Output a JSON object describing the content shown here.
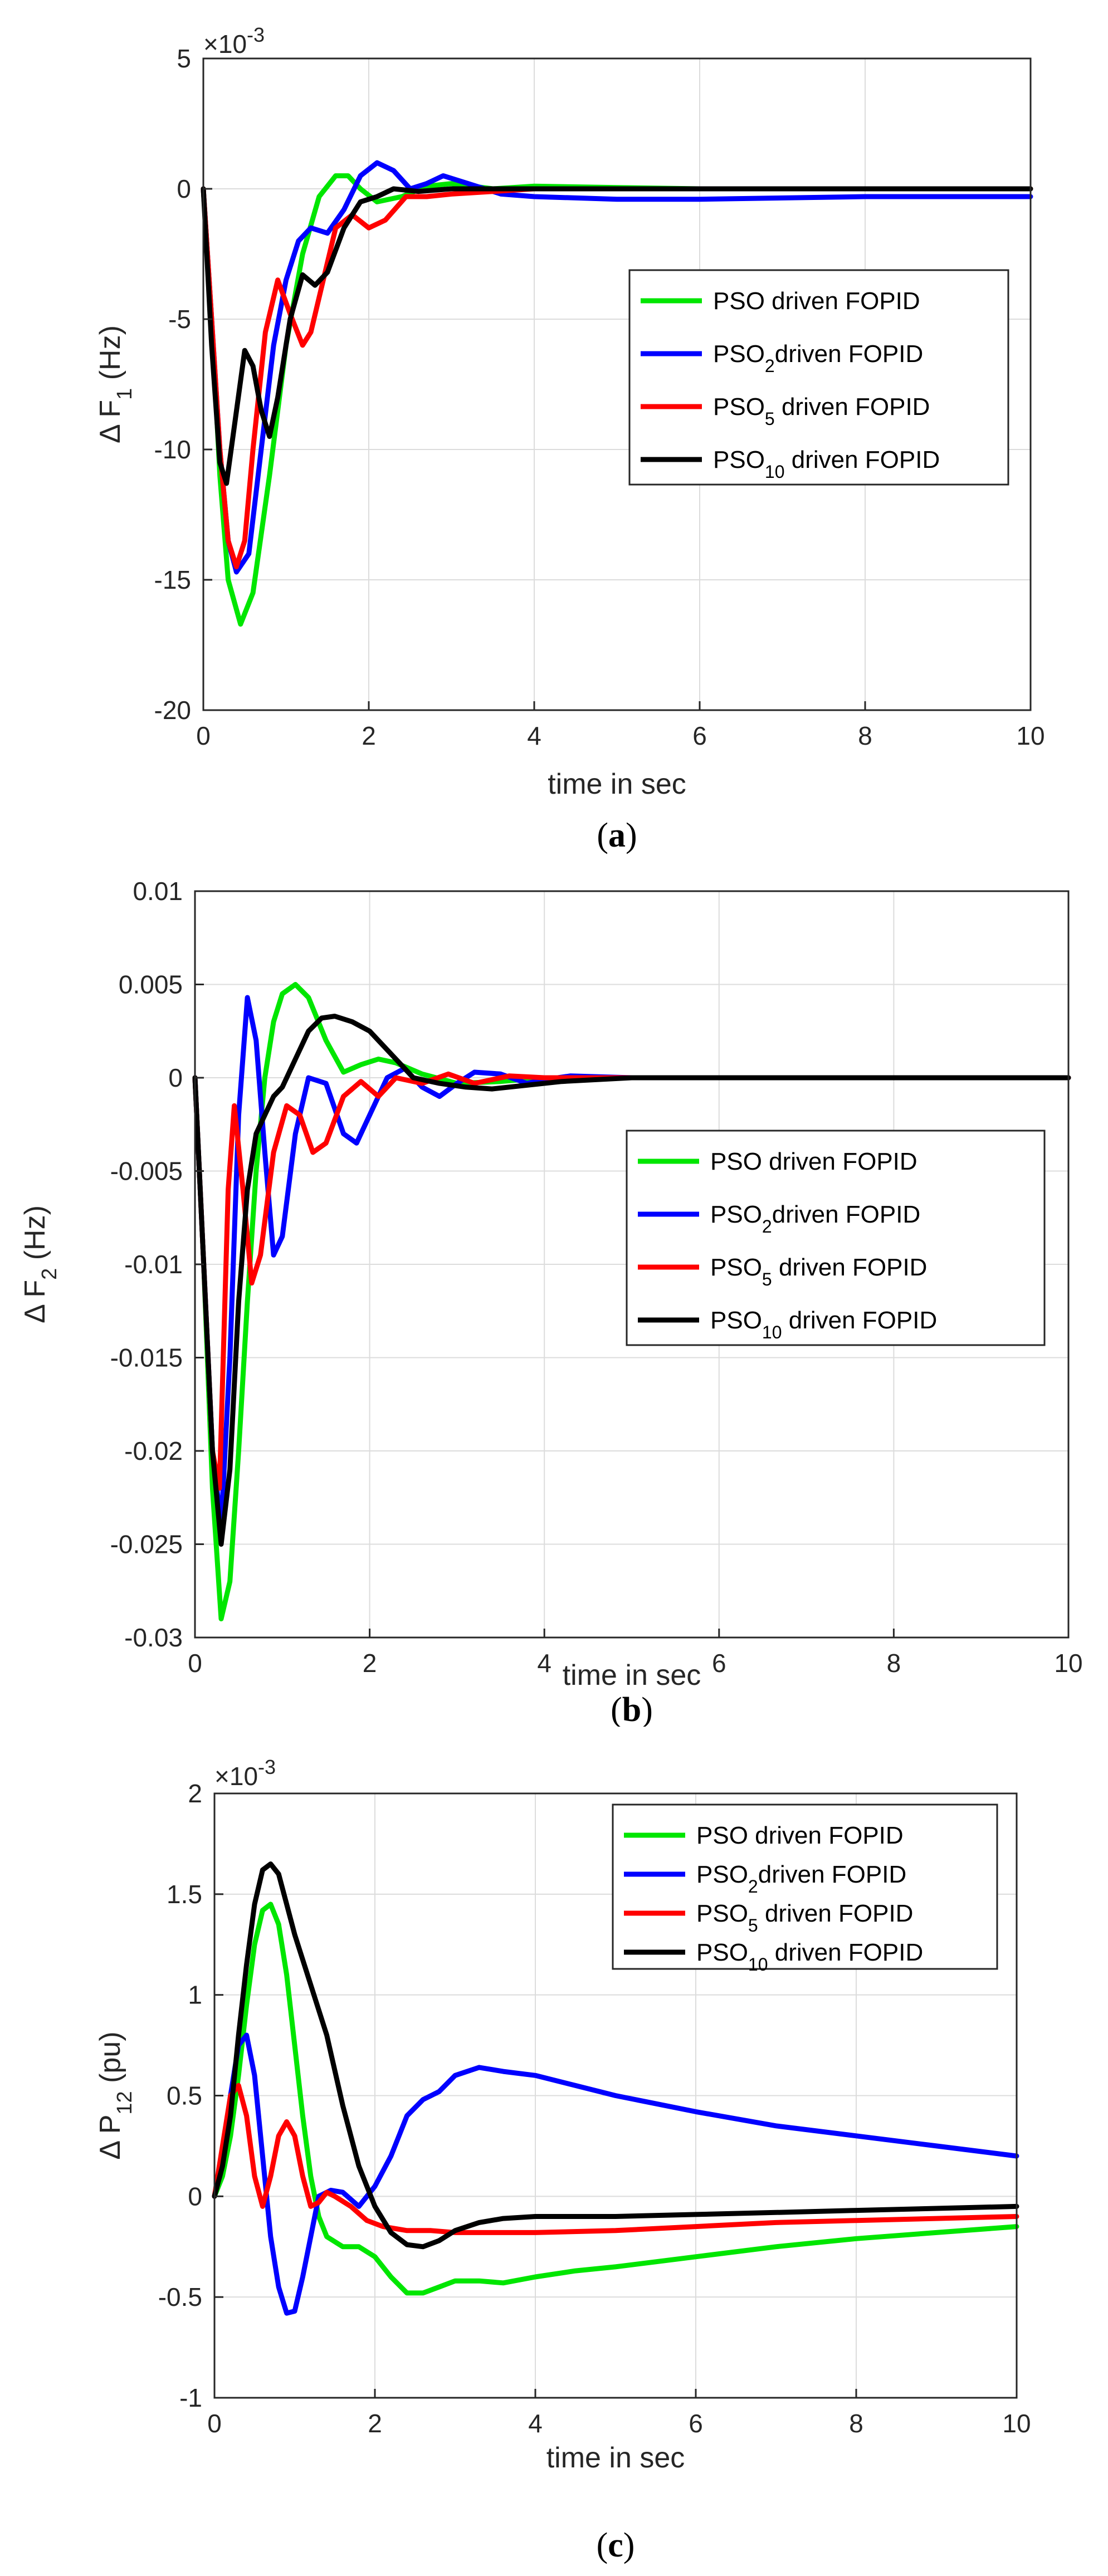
{
  "figure_panels": [
    {
      "caption_letter": "a"
    },
    {
      "caption_letter": "b"
    },
    {
      "caption_letter": "c"
    }
  ],
  "chart_data": [
    {
      "type": "line",
      "panel": "a",
      "xlabel": "time in sec",
      "ylabel": "Δ F",
      "ylabel_sub": "1",
      "ylabel_unit": " (Hz)",
      "exponent": "×10",
      "exponent_power": "-3",
      "xlim": [
        0,
        10
      ],
      "ylim": [
        -20,
        5
      ],
      "xticks": [
        0,
        2,
        4,
        6,
        8,
        10
      ],
      "yticks": [
        -20,
        -15,
        -10,
        -5,
        0,
        5
      ],
      "grid": true,
      "legend_position": "center-right",
      "series": [
        {
          "name": "PSO driven FOPID",
          "name_main": "PSO",
          "name_sub": "",
          "name_rest": " driven FOPID",
          "color": "#00e600",
          "x": [
            0,
            0.1,
            0.2,
            0.3,
            0.45,
            0.6,
            0.8,
            1.0,
            1.2,
            1.4,
            1.6,
            1.75,
            1.9,
            2.1,
            2.4,
            2.7,
            3.0,
            3.5,
            4.0,
            5.0,
            6.0,
            8.0,
            10.0
          ],
          "y": [
            0,
            -5,
            -11,
            -15,
            -16.7,
            -15.5,
            -11,
            -6,
            -2.5,
            -0.3,
            0.5,
            0.5,
            0,
            -0.5,
            -0.3,
            0.1,
            0.2,
            0,
            0.1,
            0.05,
            0,
            0,
            0
          ]
        },
        {
          "name": "PSO2driven FOPID",
          "name_main": "PSO",
          "name_sub": "2",
          "name_rest": "driven FOPID",
          "color": "#0000ff",
          "x": [
            0,
            0.1,
            0.2,
            0.3,
            0.4,
            0.55,
            0.7,
            0.85,
            1.0,
            1.15,
            1.3,
            1.5,
            1.7,
            1.9,
            2.1,
            2.3,
            2.5,
            2.7,
            2.9,
            3.2,
            3.6,
            4.0,
            5.0,
            6.0,
            8.0,
            10.0
          ],
          "y": [
            0,
            -5,
            -10,
            -13.5,
            -14.7,
            -14,
            -10,
            -6,
            -3.5,
            -2,
            -1.5,
            -1.7,
            -0.8,
            0.5,
            1.0,
            0.7,
            0,
            0.2,
            0.5,
            0.2,
            -0.2,
            -0.3,
            -0.4,
            -0.4,
            -0.3,
            -0.3
          ]
        },
        {
          "name": "PSO5 driven FOPID",
          "name_main": "PSO",
          "name_sub": "5",
          "name_rest": " driven FOPID",
          "color": "#ff0000",
          "x": [
            0,
            0.1,
            0.2,
            0.3,
            0.4,
            0.5,
            0.6,
            0.75,
            0.9,
            1.05,
            1.2,
            1.3,
            1.45,
            1.6,
            1.8,
            2.0,
            2.2,
            2.45,
            2.7,
            3.0,
            3.5,
            4.0,
            5.0,
            6.0,
            8.0,
            10.0
          ],
          "y": [
            0,
            -5,
            -10,
            -13.5,
            -14.5,
            -13.5,
            -10,
            -5.5,
            -3.5,
            -4.8,
            -6,
            -5.5,
            -3.5,
            -1.5,
            -1.0,
            -1.5,
            -1.2,
            -0.3,
            -0.3,
            -0.2,
            -0.1,
            0,
            0,
            0,
            0,
            0
          ]
        },
        {
          "name": "PSO10 driven FOPID",
          "name_main": "PSO",
          "name_sub": "10",
          "name_rest": " driven FOPID",
          "color": "#000000",
          "x": [
            0,
            0.1,
            0.2,
            0.28,
            0.38,
            0.5,
            0.6,
            0.7,
            0.8,
            0.9,
            1.05,
            1.2,
            1.35,
            1.5,
            1.7,
            1.9,
            2.1,
            2.3,
            2.6,
            3.0,
            3.5,
            4.0,
            5.0,
            6.0,
            8.0,
            10.0
          ],
          "y": [
            0,
            -6,
            -10.5,
            -11.3,
            -9,
            -6.2,
            -6.8,
            -8.5,
            -9.5,
            -8,
            -5,
            -3.3,
            -3.7,
            -3.2,
            -1.5,
            -0.5,
            -0.3,
            0,
            -0.1,
            0,
            0,
            0,
            0,
            0,
            0,
            0
          ]
        }
      ]
    },
    {
      "type": "line",
      "panel": "b",
      "xlabel": "time in sec",
      "ylabel": "Δ F",
      "ylabel_sub": "2",
      "ylabel_unit": " (Hz)",
      "xlim": [
        0,
        10
      ],
      "ylim": [
        -0.03,
        0.01
      ],
      "xticks": [
        0,
        2,
        4,
        6,
        8,
        10
      ],
      "yticks": [
        -0.03,
        -0.025,
        -0.02,
        -0.015,
        -0.01,
        -0.005,
        0,
        0.005,
        0.01
      ],
      "ytick_labels": [
        "-0.03",
        "-0.025",
        "-0.02",
        "-0.015",
        "-0.01",
        "-0.005",
        "0",
        "0.005",
        "0.01"
      ],
      "grid": true,
      "legend_position": "center-right",
      "series": [
        {
          "name": "PSO driven FOPID",
          "name_main": "PSO",
          "name_sub": "",
          "name_rest": " driven FOPID",
          "color": "#00e600",
          "x": [
            0,
            0.1,
            0.2,
            0.3,
            0.4,
            0.5,
            0.6,
            0.7,
            0.8,
            0.9,
            1.0,
            1.15,
            1.3,
            1.5,
            1.7,
            1.9,
            2.1,
            2.3,
            2.6,
            3.0,
            3.5,
            4.0,
            5.0,
            6.0,
            8.0,
            10.0
          ],
          "y": [
            0,
            -0.01,
            -0.022,
            -0.029,
            -0.027,
            -0.02,
            -0.012,
            -0.005,
            0,
            0.003,
            0.0045,
            0.005,
            0.0043,
            0.002,
            0.0003,
            0.0007,
            0.001,
            0.0008,
            0.0002,
            -0.0003,
            -0.0002,
            0,
            0,
            0,
            0,
            0
          ]
        },
        {
          "name": "PSO2driven FOPID",
          "name_main": "PSO",
          "name_sub": "2",
          "name_rest": "driven FOPID",
          "color": "#0000ff",
          "x": [
            0,
            0.1,
            0.2,
            0.3,
            0.4,
            0.5,
            0.6,
            0.7,
            0.8,
            0.9,
            1.0,
            1.15,
            1.3,
            1.5,
            1.7,
            1.85,
            2.0,
            2.2,
            2.4,
            2.6,
            2.8,
            3.0,
            3.2,
            3.5,
            3.8,
            4.0,
            4.3,
            5.0,
            6.0,
            8.0,
            10.0
          ],
          "y": [
            0,
            -0.01,
            -0.02,
            -0.024,
            -0.015,
            -0.002,
            0.0043,
            0.002,
            -0.004,
            -0.0095,
            -0.0085,
            -0.003,
            0,
            -0.0003,
            -0.003,
            -0.0035,
            -0.002,
            0,
            0.0005,
            -0.0005,
            -0.001,
            -0.0003,
            0.0003,
            0.0002,
            -0.0003,
            -0.0001,
            0.0001,
            0,
            0,
            0,
            0
          ]
        },
        {
          "name": "PSO5 driven FOPID",
          "name_main": "PSO",
          "name_sub": "5",
          "name_rest": " driven FOPID",
          "color": "#ff0000",
          "x": [
            0,
            0.1,
            0.2,
            0.28,
            0.38,
            0.45,
            0.55,
            0.65,
            0.75,
            0.9,
            1.05,
            1.2,
            1.35,
            1.5,
            1.7,
            1.9,
            2.1,
            2.3,
            2.6,
            2.9,
            3.2,
            3.6,
            4.0,
            5.0,
            6.0,
            8.0,
            10.0
          ],
          "y": [
            0,
            -0.01,
            -0.02,
            -0.022,
            -0.006,
            -0.0015,
            -0.006,
            -0.011,
            -0.0095,
            -0.004,
            -0.0015,
            -0.002,
            -0.004,
            -0.0035,
            -0.001,
            -0.0002,
            -0.001,
            0,
            -0.0003,
            0.0002,
            -0.0003,
            0.0001,
            0,
            0,
            0,
            0,
            0
          ]
        },
        {
          "name": "PSO10 driven FOPID",
          "name_main": "PSO",
          "name_sub": "10",
          "name_rest": " driven FOPID",
          "color": "#000000",
          "x": [
            0,
            0.1,
            0.2,
            0.3,
            0.4,
            0.5,
            0.6,
            0.7,
            0.8,
            0.9,
            1.0,
            1.15,
            1.3,
            1.45,
            1.6,
            1.8,
            2.0,
            2.2,
            2.5,
            2.8,
            3.1,
            3.4,
            3.8,
            4.2,
            5.0,
            6.0,
            8.0,
            10.0
          ],
          "y": [
            0,
            -0.01,
            -0.02,
            -0.025,
            -0.021,
            -0.012,
            -0.006,
            -0.003,
            -0.002,
            -0.001,
            -0.0005,
            0.001,
            0.0025,
            0.0032,
            0.0033,
            0.003,
            0.0025,
            0.0015,
            0,
            -0.0003,
            -0.0005,
            -0.0006,
            -0.0004,
            -0.0002,
            0,
            0,
            0,
            0
          ]
        }
      ]
    },
    {
      "type": "line",
      "panel": "c",
      "xlabel": "time in sec",
      "ylabel": "Δ P",
      "ylabel_sub": "12",
      "ylabel_unit": " (pu)",
      "exponent": "×10",
      "exponent_power": "-3",
      "xlim": [
        0,
        10
      ],
      "ylim": [
        -1,
        2
      ],
      "xticks": [
        0,
        2,
        4,
        6,
        8,
        10
      ],
      "yticks": [
        -1,
        -0.5,
        0,
        0.5,
        1,
        1.5,
        2
      ],
      "grid": true,
      "legend_position": "top-right",
      "series": [
        {
          "name": "PSO driven FOPID",
          "name_main": "PSO",
          "name_sub": "",
          "name_rest": " driven FOPID",
          "color": "#00e600",
          "x": [
            0,
            0.1,
            0.2,
            0.3,
            0.4,
            0.5,
            0.6,
            0.7,
            0.8,
            0.9,
            1.0,
            1.1,
            1.2,
            1.3,
            1.4,
            1.6,
            1.8,
            2.0,
            2.2,
            2.4,
            2.6,
            2.8,
            3.0,
            3.3,
            3.6,
            4.0,
            4.5,
            5.0,
            6.0,
            7.0,
            8.0,
            9.0,
            10.0
          ],
          "y": [
            0,
            0.1,
            0.3,
            0.6,
            0.95,
            1.25,
            1.42,
            1.45,
            1.35,
            1.1,
            0.75,
            0.4,
            0.1,
            -0.1,
            -0.2,
            -0.25,
            -0.25,
            -0.3,
            -0.4,
            -0.48,
            -0.48,
            -0.45,
            -0.42,
            -0.42,
            -0.43,
            -0.4,
            -0.37,
            -0.35,
            -0.3,
            -0.25,
            -0.21,
            -0.18,
            -0.15
          ]
        },
        {
          "name": "PSO2driven FOPID",
          "name_main": "PSO",
          "name_sub": "2",
          "name_rest": "driven FOPID",
          "color": "#0000ff",
          "x": [
            0,
            0.1,
            0.2,
            0.3,
            0.4,
            0.5,
            0.6,
            0.7,
            0.8,
            0.9,
            1.0,
            1.1,
            1.2,
            1.3,
            1.45,
            1.6,
            1.8,
            2.0,
            2.2,
            2.4,
            2.6,
            2.8,
            3.0,
            3.3,
            3.6,
            4.0,
            4.5,
            5.0,
            6.0,
            7.0,
            8.0,
            9.0,
            10.0
          ],
          "y": [
            0,
            0.2,
            0.5,
            0.75,
            0.8,
            0.6,
            0.2,
            -0.2,
            -0.45,
            -0.58,
            -0.57,
            -0.4,
            -0.2,
            0,
            0.03,
            0.02,
            -0.05,
            0.05,
            0.2,
            0.4,
            0.48,
            0.52,
            0.6,
            0.64,
            0.62,
            0.6,
            0.55,
            0.5,
            0.42,
            0.35,
            0.3,
            0.25,
            0.2
          ]
        },
        {
          "name": "PSO5 driven FOPID",
          "name_main": "PSO",
          "name_sub": "5",
          "name_rest": " driven FOPID",
          "color": "#ff0000",
          "x": [
            0,
            0.1,
            0.2,
            0.3,
            0.4,
            0.5,
            0.6,
            0.7,
            0.8,
            0.9,
            1.0,
            1.1,
            1.2,
            1.3,
            1.4,
            1.5,
            1.7,
            1.9,
            2.1,
            2.4,
            2.7,
            3.0,
            3.5,
            4.0,
            5.0,
            6.0,
            7.0,
            8.0,
            9.0,
            10.0
          ],
          "y": [
            0,
            0.25,
            0.5,
            0.55,
            0.4,
            0.1,
            -0.05,
            0.1,
            0.3,
            0.37,
            0.3,
            0.1,
            -0.05,
            -0.03,
            0.02,
            0,
            -0.05,
            -0.12,
            -0.15,
            -0.17,
            -0.17,
            -0.18,
            -0.18,
            -0.18,
            -0.17,
            -0.15,
            -0.13,
            -0.12,
            -0.11,
            -0.1
          ]
        },
        {
          "name": "PSO10 driven FOPID",
          "name_main": "PSO",
          "name_sub": "10",
          "name_rest": " driven FOPID",
          "color": "#000000",
          "x": [
            0,
            0.1,
            0.2,
            0.3,
            0.4,
            0.5,
            0.6,
            0.7,
            0.8,
            0.9,
            1.0,
            1.2,
            1.4,
            1.6,
            1.8,
            2.0,
            2.2,
            2.4,
            2.6,
            2.8,
            3.0,
            3.3,
            3.6,
            4.0,
            4.5,
            5.0,
            6.0,
            7.0,
            8.0,
            9.0,
            10.0
          ],
          "y": [
            0,
            0.15,
            0.4,
            0.8,
            1.15,
            1.45,
            1.62,
            1.65,
            1.6,
            1.45,
            1.3,
            1.05,
            0.8,
            0.45,
            0.15,
            -0.05,
            -0.18,
            -0.24,
            -0.25,
            -0.22,
            -0.17,
            -0.13,
            -0.11,
            -0.1,
            -0.1,
            -0.1,
            -0.09,
            -0.08,
            -0.07,
            -0.06,
            -0.05
          ]
        }
      ]
    }
  ]
}
